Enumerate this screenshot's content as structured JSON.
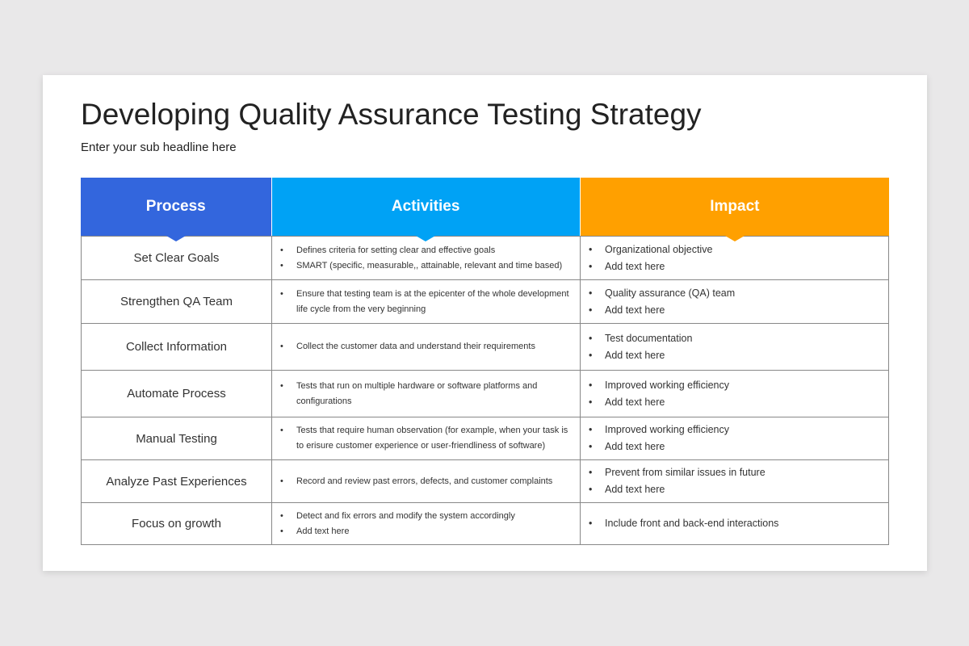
{
  "title": "Developing Quality Assurance Testing Strategy",
  "subtitle": "Enter your sub headline here",
  "colors": {
    "process": "#3366dd",
    "activities": "#00a2f5",
    "impact": "#ffa000"
  },
  "headers": [
    "Process",
    "Activities",
    "Impact"
  ],
  "rows": [
    {
      "process": "Set Clear Goals",
      "activities": [
        "Defines criteria for setting clear and effective goals",
        " SMART (specific, measurable,, attainable, relevant and time based)"
      ],
      "impact": [
        "Organizational objective",
        "Add text here"
      ]
    },
    {
      "process": "Strengthen QA Team",
      "activities": [
        "Ensure that testing team is at the epicenter of the whole development life cycle from the very beginning"
      ],
      "impact": [
        "Quality assurance (QA) team",
        "Add text here"
      ]
    },
    {
      "process": "Collect Information",
      "activities": [
        "Collect the customer data and understand their requirements"
      ],
      "impact": [
        "Test documentation",
        "Add text here"
      ]
    },
    {
      "process": "Automate Process",
      "activities": [
        "Tests that run on multiple hardware or software platforms and configurations"
      ],
      "impact": [
        "Improved working efficiency",
        "Add text here"
      ]
    },
    {
      "process": "Manual Testing",
      "activities": [
        "Tests that require human observation (for example, when your task is to erisure customer experience or user-friendliness of software)"
      ],
      "impact": [
        "Improved working efficiency",
        "Add text here"
      ]
    },
    {
      "process": "Analyze Past Experiences",
      "activities": [
        "Record and review past errors, defects, and customer complaints"
      ],
      "impact": [
        "Prevent from similar issues in future",
        "Add text here"
      ]
    },
    {
      "process": "Focus on growth",
      "activities": [
        "Detect and fix errors and modify the system accordingly",
        "Add text here"
      ],
      "impact": [
        "Include front and back-end interactions"
      ]
    }
  ]
}
